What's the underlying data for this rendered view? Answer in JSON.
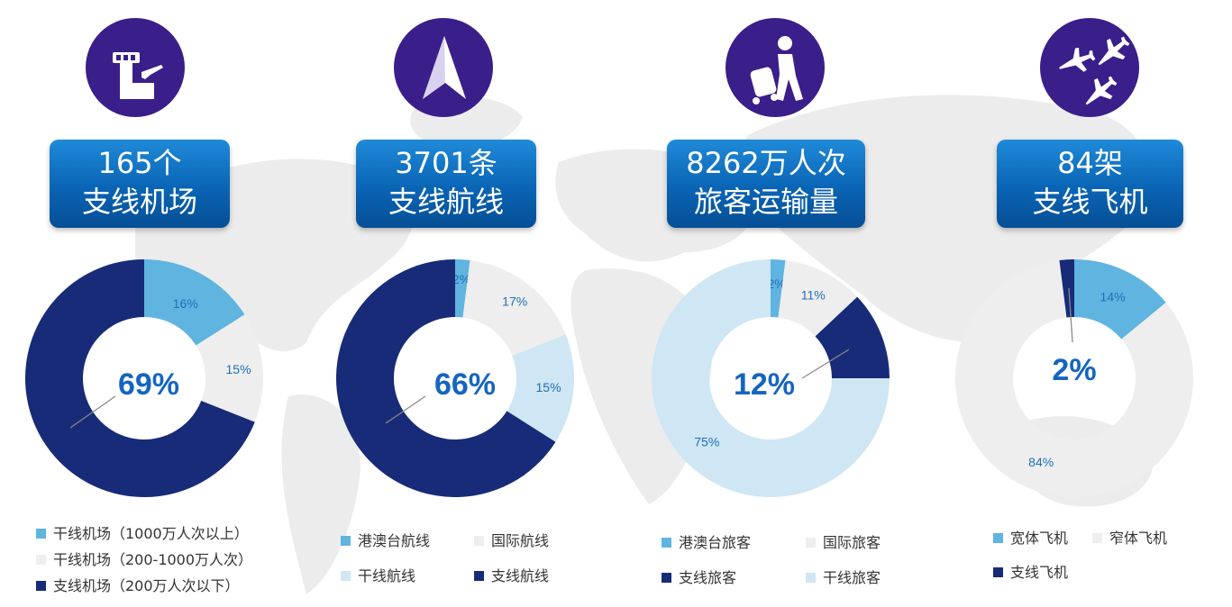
{
  "colors": {
    "light_blue": "#5fb4e0",
    "light_gray": "#eeeeee",
    "dark_navy": "#172b78",
    "pale_blue": "#cfe6f4",
    "banner": "#0a64b5",
    "icon_bg": "#3a1e8a",
    "pct_text": "#1565c0"
  },
  "panels": [
    {
      "icon": "airport-tower-icon",
      "banner": {
        "line1": "165个",
        "line2": "支线机场"
      },
      "legend": [
        "干线机场（1000万人次以上）",
        "干线机场（200-1000万人次）",
        "支线机场（200万人次以下）"
      ]
    },
    {
      "icon": "navigation-arrow-icon",
      "banner": {
        "line1": "3701条",
        "line2": "支线航线"
      },
      "legend": [
        "港澳台航线",
        "国际航线",
        "干线航线",
        "支线航线"
      ]
    },
    {
      "icon": "traveler-luggage-icon",
      "banner": {
        "line1": "8262万人次",
        "line2": "旅客运输量"
      },
      "legend": [
        "港澳台旅客",
        "国际旅客",
        "支线旅客",
        "干线旅客"
      ]
    },
    {
      "icon": "airplanes-icon",
      "banner": {
        "line1": "84架",
        "line2": "支线飞机"
      },
      "legend": [
        "宽体飞机",
        "窄体飞机",
        "支线飞机"
      ]
    }
  ],
  "chart_data": [
    {
      "type": "pie",
      "slices": [
        {
          "label": "干线机场（1000万人次以上）",
          "value": 16,
          "text": "16%",
          "color": "#5fb4e0"
        },
        {
          "label": "干线机场（200-1000万人次）",
          "value": 15,
          "text": "15%",
          "color": "#eeeeee"
        },
        {
          "label": "支线机场（200万人次以下）",
          "value": 69,
          "text": "69%",
          "color": "#172b78"
        }
      ],
      "highlight": "69%"
    },
    {
      "type": "pie",
      "slices": [
        {
          "label": "港澳台航线",
          "value": 2,
          "text": "2%",
          "color": "#5fb4e0"
        },
        {
          "label": "国际航线",
          "value": 17,
          "text": "17%",
          "color": "#eeeeee"
        },
        {
          "label": "干线航线",
          "value": 15,
          "text": "15%",
          "color": "#cfe6f4"
        },
        {
          "label": "支线航线",
          "value": 66,
          "text": "66%",
          "color": "#172b78"
        }
      ],
      "highlight": "66%"
    },
    {
      "type": "pie",
      "slices": [
        {
          "label": "港澳台旅客",
          "value": 2,
          "text": "2%",
          "color": "#5fb4e0"
        },
        {
          "label": "国际旅客",
          "value": 11,
          "text": "11%",
          "color": "#eeeeee"
        },
        {
          "label": "支线旅客",
          "value": 12,
          "text": "12%",
          "color": "#172b78"
        },
        {
          "label": "干线旅客",
          "value": 75,
          "text": "75%",
          "color": "#cfe6f4"
        }
      ],
      "highlight": "12%"
    },
    {
      "type": "pie",
      "slices": [
        {
          "label": "宽体飞机",
          "value": 14,
          "text": "14%",
          "color": "#5fb4e0"
        },
        {
          "label": "窄体飞机",
          "value": 84,
          "text": "84%",
          "color": "#eeeeee"
        },
        {
          "label": "支线飞机",
          "value": 2,
          "text": "2%",
          "color": "#172b78"
        }
      ],
      "highlight": "2%"
    }
  ]
}
